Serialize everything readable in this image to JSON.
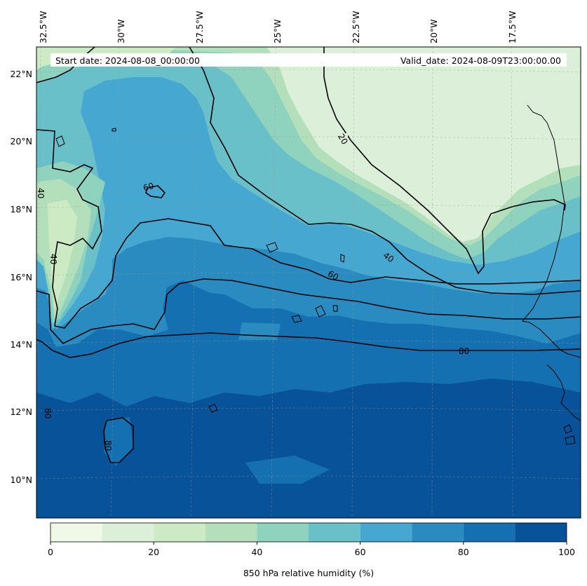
{
  "header": {
    "start_date": "Start date: 2024-08-08_00:00:00",
    "valid_date": "Valid_date: 2024-08-09T23:00:00.00"
  },
  "map": {
    "lon_labels": [
      "32.5°W",
      "30°W",
      "27.5°W",
      "25°W",
      "22.5°W",
      "20°W",
      "17.5°W"
    ],
    "lat_labels": [
      "22°N",
      "20°N",
      "18°N",
      "16°N",
      "14°N",
      "12°N",
      "10°N"
    ],
    "contour_labels": [
      "20",
      "40",
      "40",
      "40",
      "60",
      "60",
      "80",
      "80",
      "80"
    ],
    "gridlines": "dashed",
    "coastline_color": "#000000"
  },
  "colorbar": {
    "label": "850 hPa relative humidity (%)",
    "ticks": [
      "0",
      "20",
      "40",
      "60",
      "80",
      "100"
    ],
    "levels": [
      0,
      10,
      20,
      30,
      40,
      50,
      60,
      70,
      80,
      90,
      100
    ],
    "colors": [
      "#f0f9e8",
      "#dcefd8",
      "#ccebc5",
      "#b3e0ba",
      "#8fd2be",
      "#6ac0c8",
      "#46a8d0",
      "#2a8bc0",
      "#1470b0",
      "#08529a"
    ]
  },
  "chart_data": {
    "type": "heatmap",
    "title": "",
    "variable": "850 hPa relative humidity (%)",
    "lon_range": [
      "32.5°W",
      "16°W"
    ],
    "lat_range": [
      "9°N",
      "22.5°N"
    ],
    "contour_levels": [
      20,
      40,
      60,
      80
    ],
    "colorbar_range": [
      0,
      100
    ],
    "color_scale": "GnBu"
  }
}
